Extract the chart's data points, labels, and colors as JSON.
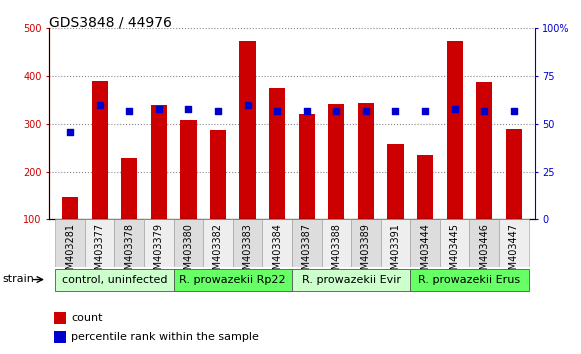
{
  "title": "GDS3848 / 44976",
  "samples": [
    "GSM403281",
    "GSM403377",
    "GSM403378",
    "GSM403379",
    "GSM403380",
    "GSM403382",
    "GSM403383",
    "GSM403384",
    "GSM403387",
    "GSM403388",
    "GSM403389",
    "GSM403391",
    "GSM403444",
    "GSM403445",
    "GSM403446",
    "GSM403447"
  ],
  "counts": [
    148,
    390,
    228,
    340,
    308,
    287,
    473,
    375,
    320,
    342,
    343,
    258,
    234,
    473,
    388,
    290
  ],
  "percentiles": [
    46,
    60,
    57,
    58,
    58,
    57,
    60,
    57,
    57,
    57,
    57,
    57,
    57,
    58,
    57,
    57
  ],
  "groups": [
    {
      "label": "control, uninfected",
      "start": 0,
      "end": 3,
      "color": "#ccffcc"
    },
    {
      "label": "R. prowazekii Rp22",
      "start": 4,
      "end": 7,
      "color": "#66ff66"
    },
    {
      "label": "R. prowazekii Evir",
      "start": 8,
      "end": 11,
      "color": "#ccffcc"
    },
    {
      "label": "R. prowazekii Erus",
      "start": 12,
      "end": 15,
      "color": "#66ff66"
    }
  ],
  "bar_color": "#cc0000",
  "dot_color": "#0000cc",
  "ylim_left": [
    100,
    500
  ],
  "ylim_right": [
    0,
    100
  ],
  "yticks_left": [
    100,
    200,
    300,
    400,
    500
  ],
  "yticks_right": [
    0,
    25,
    50,
    75,
    100
  ],
  "yticklabels_right": [
    "0",
    "25",
    "50",
    "75",
    "100%"
  ],
  "background_color": "#ffffff",
  "plot_bg_color": "#ffffff",
  "grid_color": "#888888",
  "title_fontsize": 10,
  "tick_fontsize": 7,
  "legend_fontsize": 8,
  "group_label_fontsize": 8,
  "strain_label": "strain"
}
